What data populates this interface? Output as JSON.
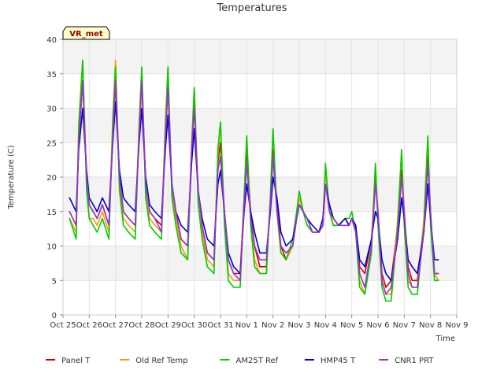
{
  "chart_data": {
    "type": "line",
    "title": "Temperatures",
    "xlabel": "Time",
    "ylabel": "Temperature (C)",
    "ylim": [
      0,
      40
    ],
    "xlim": [
      0,
      15
    ],
    "yticks": [
      0,
      5,
      10,
      15,
      20,
      25,
      30,
      35,
      40
    ],
    "xticks": [
      "Oct 25",
      "Oct 26",
      "Oct 27",
      "Oct 28",
      "Oct 29",
      "Oct 30",
      "Oct 31",
      "Nov 1",
      "Nov 2",
      "Nov 3",
      "Nov 4",
      "Nov 5",
      "Nov 6",
      "Nov 7",
      "Nov 8",
      "Nov 9"
    ],
    "annotation": "VR_met",
    "grid": true,
    "legend_position": "bottom",
    "x_units": "days since Oct 25",
    "series": [
      {
        "name": "Panel T",
        "color": "#cc0000",
        "x": [
          0.25,
          0.5,
          0.6,
          0.75,
          0.9,
          1.0,
          1.15,
          1.3,
          1.5,
          1.75,
          1.9,
          2.0,
          2.15,
          2.3,
          2.5,
          2.75,
          2.9,
          3.0,
          3.15,
          3.3,
          3.5,
          3.75,
          3.9,
          4.0,
          4.15,
          4.3,
          4.5,
          4.75,
          4.9,
          5.0,
          5.15,
          5.3,
          5.5,
          5.75,
          5.9,
          6.0,
          6.15,
          6.3,
          6.5,
          6.75,
          6.9,
          7.0,
          7.15,
          7.3,
          7.5,
          7.75,
          7.9,
          8.0,
          8.15,
          8.3,
          8.5,
          8.75,
          8.9,
          9.0,
          9.15,
          9.3,
          9.5,
          9.75,
          9.9,
          10.0,
          10.15,
          10.3,
          10.5,
          10.75,
          10.9,
          11.0,
          11.15,
          11.3,
          11.5,
          11.75,
          11.9,
          12.0,
          12.15,
          12.3,
          12.5,
          12.75,
          12.9,
          13.0,
          13.15,
          13.3,
          13.5,
          13.75,
          13.9,
          14.0,
          14.15,
          14.3
        ],
        "y": [
          15,
          13,
          25,
          34,
          20,
          16,
          15,
          14,
          16,
          13,
          27,
          34,
          20,
          15,
          14,
          13,
          27,
          34,
          19,
          15,
          14,
          13,
          26,
          33,
          19,
          15,
          11,
          10,
          23,
          31,
          18,
          13,
          9,
          8,
          22,
          25,
          15,
          8,
          6,
          6,
          17,
          24,
          15,
          10,
          7,
          7,
          17,
          24,
          16,
          10,
          8,
          10,
          14,
          16,
          15,
          14,
          12,
          12,
          13,
          19,
          16,
          14,
          13,
          14,
          13,
          14,
          13,
          7,
          6,
          11,
          20,
          15,
          6,
          4,
          5,
          13,
          21,
          15,
          7,
          5,
          5,
          13,
          23,
          15,
          6,
          6
        ]
      },
      {
        "name": "Old Ref Temp",
        "color": "#ff9900",
        "x": [
          0.25,
          0.5,
          0.6,
          0.75,
          0.9,
          1.0,
          1.15,
          1.3,
          1.5,
          1.75,
          1.9,
          2.0,
          2.15,
          2.3,
          2.5,
          2.75,
          2.9,
          3.0,
          3.15,
          3.3,
          3.5,
          3.75,
          3.9,
          4.0,
          4.15,
          4.3,
          4.5,
          4.75,
          4.9,
          5.0,
          5.15,
          5.3,
          5.5,
          5.75,
          5.9,
          6.0,
          6.15,
          6.3,
          6.5,
          6.75,
          6.9,
          7.0,
          7.15,
          7.3,
          7.5,
          7.75,
          7.9,
          8.0,
          8.15,
          8.3,
          8.5,
          8.75,
          8.9,
          9.0,
          9.15,
          9.3,
          9.5,
          9.75,
          9.9,
          10.0,
          10.15,
          10.3,
          10.5,
          10.75,
          10.9,
          11.0,
          11.15,
          11.3,
          11.5,
          11.75,
          11.9,
          12.0,
          12.15,
          12.3,
          12.5,
          12.75,
          12.9,
          13.0,
          13.15,
          13.3,
          13.5,
          13.75,
          13.9,
          14.0,
          14.15,
          14.3
        ],
        "y": [
          14,
          12,
          28,
          37,
          19,
          14,
          14,
          13,
          15,
          12,
          29,
          37,
          19,
          14,
          13,
          12,
          28,
          36,
          18,
          14,
          13,
          12,
          28,
          36,
          18,
          14,
          10,
          8,
          25,
          33,
          17,
          12,
          8,
          7,
          23,
          28,
          14,
          6,
          5,
          5,
          17,
          26,
          14,
          8,
          6,
          6,
          17,
          27,
          15,
          9,
          8,
          10,
          14,
          17,
          15,
          13,
          12,
          12,
          13,
          21,
          15,
          13,
          13,
          14,
          13,
          14,
          12,
          5,
          3,
          10,
          22,
          14,
          5,
          3,
          3,
          14,
          24,
          14,
          5,
          4,
          4,
          14,
          26,
          14,
          6,
          5
        ]
      },
      {
        "name": "AM25T Ref",
        "color": "#00cc00",
        "x": [
          0.25,
          0.5,
          0.6,
          0.75,
          0.9,
          1.0,
          1.15,
          1.3,
          1.5,
          1.75,
          1.9,
          2.0,
          2.15,
          2.3,
          2.5,
          2.75,
          2.9,
          3.0,
          3.15,
          3.3,
          3.5,
          3.75,
          3.9,
          4.0,
          4.15,
          4.3,
          4.5,
          4.75,
          4.9,
          5.0,
          5.15,
          5.3,
          5.5,
          5.75,
          5.9,
          6.0,
          6.15,
          6.3,
          6.5,
          6.75,
          6.9,
          7.0,
          7.15,
          7.3,
          7.5,
          7.75,
          7.9,
          8.0,
          8.15,
          8.3,
          8.5,
          8.75,
          8.9,
          9.0,
          9.15,
          9.3,
          9.5,
          9.75,
          9.9,
          10.0,
          10.15,
          10.3,
          10.5,
          10.75,
          10.9,
          11.0,
          11.15,
          11.3,
          11.5,
          11.75,
          11.9,
          12.0,
          12.15,
          12.3,
          12.5,
          12.75,
          12.9,
          13.0,
          13.15,
          13.3,
          13.5,
          13.75,
          13.9,
          14.0,
          14.15,
          14.3
        ],
        "y": [
          14,
          11,
          27,
          37,
          18,
          14,
          13,
          12,
          14,
          11,
          28,
          36,
          18,
          13,
          12,
          11,
          27,
          36,
          17,
          13,
          12,
          11,
          27,
          36,
          17,
          13,
          9,
          8,
          24,
          33,
          16,
          11,
          7,
          6,
          24,
          28,
          13,
          5,
          4,
          4,
          17,
          26,
          13,
          7,
          6,
          6,
          17,
          27,
          15,
          9,
          8,
          11,
          15,
          18,
          15,
          13,
          12,
          12,
          13,
          22,
          15,
          13,
          13,
          14,
          14,
          15,
          12,
          4,
          3,
          9,
          22,
          13,
          4,
          2,
          2,
          13,
          24,
          13,
          4,
          3,
          3,
          13,
          26,
          13,
          5,
          5
        ]
      },
      {
        "name": "HMP45 T",
        "color": "#0000cc",
        "x": [
          0.25,
          0.5,
          0.6,
          0.75,
          0.9,
          1.0,
          1.15,
          1.3,
          1.5,
          1.75,
          1.9,
          2.0,
          2.15,
          2.3,
          2.5,
          2.75,
          2.9,
          3.0,
          3.15,
          3.3,
          3.5,
          3.75,
          3.9,
          4.0,
          4.15,
          4.3,
          4.5,
          4.75,
          4.9,
          5.0,
          5.15,
          5.3,
          5.5,
          5.75,
          5.9,
          6.0,
          6.15,
          6.3,
          6.5,
          6.75,
          6.9,
          7.0,
          7.15,
          7.3,
          7.5,
          7.75,
          7.9,
          8.0,
          8.15,
          8.3,
          8.5,
          8.75,
          8.9,
          9.0,
          9.15,
          9.3,
          9.5,
          9.75,
          9.9,
          10.0,
          10.15,
          10.3,
          10.5,
          10.75,
          10.9,
          11.0,
          11.15,
          11.3,
          11.5,
          11.75,
          11.9,
          12.0,
          12.15,
          12.3,
          12.5,
          12.75,
          12.9,
          13.0,
          13.15,
          13.3,
          13.5,
          13.75,
          13.9,
          14.0,
          14.15,
          14.3
        ],
        "y": [
          17,
          15,
          24,
          30,
          21,
          17,
          16,
          15,
          17,
          15,
          25,
          31,
          21,
          17,
          16,
          15,
          25,
          30,
          20,
          16,
          15,
          14,
          24,
          29,
          19,
          15,
          13,
          12,
          22,
          27,
          18,
          14,
          11,
          10,
          19,
          21,
          15,
          9,
          7,
          6,
          15,
          19,
          15,
          12,
          9,
          9,
          15,
          20,
          17,
          12,
          10,
          11,
          14,
          16,
          15,
          14,
          13,
          12,
          14,
          19,
          16,
          14,
          13,
          14,
          13,
          14,
          13,
          8,
          7,
          11,
          15,
          14,
          8,
          6,
          5,
          11,
          17,
          14,
          8,
          7,
          6,
          12,
          19,
          14,
          8,
          8
        ]
      },
      {
        "name": "CNR1 PRT",
        "color": "#9933cc",
        "x": [
          0.25,
          0.5,
          0.6,
          0.75,
          0.9,
          1.0,
          1.15,
          1.3,
          1.5,
          1.75,
          1.9,
          2.0,
          2.15,
          2.3,
          2.5,
          2.75,
          2.9,
          3.0,
          3.15,
          3.3,
          3.5,
          3.75,
          3.9,
          4.0,
          4.15,
          4.3,
          4.5,
          4.75,
          4.9,
          5.0,
          5.15,
          5.3,
          5.5,
          5.75,
          5.9,
          6.0,
          6.15,
          6.3,
          6.5,
          6.75,
          6.9,
          7.0,
          7.15,
          7.3,
          7.5,
          7.75,
          7.9,
          8.0,
          8.15,
          8.3,
          8.5,
          8.75,
          8.9,
          9.0,
          9.15,
          9.3,
          9.5,
          9.75,
          9.9,
          10.0,
          10.15,
          10.3,
          10.5,
          10.75,
          10.9,
          11.0,
          11.15,
          11.3,
          11.5,
          11.75,
          11.9,
          12.0,
          12.15,
          12.3,
          12.5,
          12.75,
          12.9,
          13.0,
          13.15,
          13.3,
          13.5,
          13.75,
          13.9,
          14.0,
          14.15,
          14.3
        ],
        "y": [
          15,
          13,
          25,
          34,
          20,
          16,
          15,
          14,
          16,
          13,
          26,
          34,
          20,
          15,
          14,
          13,
          26,
          34,
          19,
          15,
          14,
          12,
          26,
          33,
          19,
          15,
          11,
          10,
          24,
          30,
          18,
          13,
          9,
          8,
          21,
          23,
          15,
          8,
          6,
          5,
          16,
          22,
          14,
          10,
          8,
          8,
          16,
          23,
          15,
          10,
          9,
          10,
          14,
          16,
          15,
          14,
          12,
          12,
          13,
          19,
          15,
          14,
          13,
          13,
          13,
          14,
          12,
          6,
          4,
          10,
          19,
          15,
          5,
          3,
          4,
          12,
          20,
          15,
          6,
          4,
          4,
          12,
          22,
          15,
          6,
          6
        ]
      }
    ]
  }
}
